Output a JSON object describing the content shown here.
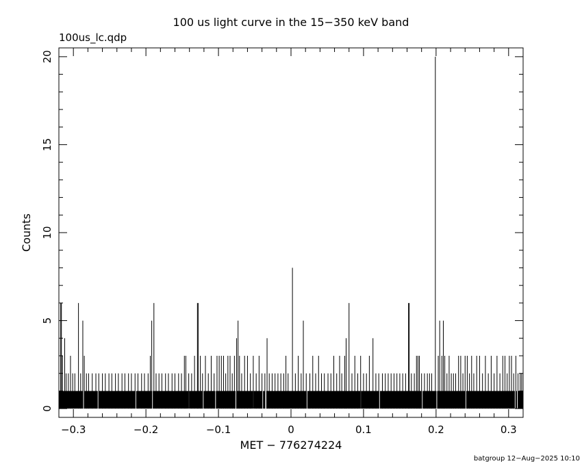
{
  "chart_data": {
    "type": "bar",
    "title": "100 us light curve in the 15−350 keV band",
    "subtitle": "100us_lc.qdp",
    "xlabel": "MET − 776274224",
    "ylabel": "Counts",
    "footer": "batgroup 12−Aug−2025 10:10",
    "xlim": [
      -0.32,
      0.32
    ],
    "ylim": [
      -0.5,
      20.5
    ],
    "grid": false,
    "legend": "none",
    "x_ticks": [
      {
        "value": -0.3,
        "label": "−0.3"
      },
      {
        "value": -0.2,
        "label": "−0.2"
      },
      {
        "value": -0.1,
        "label": "−0.1"
      },
      {
        "value": 0,
        "label": "0"
      },
      {
        "value": 0.1,
        "label": "0.1"
      },
      {
        "value": 0.2,
        "label": "0.2"
      },
      {
        "value": 0.3,
        "label": "0.3"
      }
    ],
    "y_ticks": [
      {
        "value": 0,
        "label": "0"
      },
      {
        "value": 5,
        "label": "5"
      },
      {
        "value": 10,
        "label": "10"
      },
      {
        "value": 15,
        "label": "15"
      },
      {
        "value": 20,
        "label": "20"
      }
    ],
    "bin_width": 0.0001,
    "baseline_counts": 1,
    "spikes": [
      {
        "x": -0.3175,
        "y": 6
      },
      {
        "x": -0.3165,
        "y": 6
      },
      {
        "x": -0.315,
        "y": 3
      },
      {
        "x": -0.312,
        "y": 4
      },
      {
        "x": -0.31,
        "y": 2
      },
      {
        "x": -0.307,
        "y": 2
      },
      {
        "x": -0.304,
        "y": 3
      },
      {
        "x": -0.301,
        "y": 2
      },
      {
        "x": -0.298,
        "y": 2
      },
      {
        "x": -0.293,
        "y": 6
      },
      {
        "x": -0.29,
        "y": 2
      },
      {
        "x": -0.287,
        "y": 5
      },
      {
        "x": -0.285,
        "y": 3
      },
      {
        "x": -0.282,
        "y": 2
      },
      {
        "x": -0.279,
        "y": 2
      },
      {
        "x": -0.274,
        "y": 2
      },
      {
        "x": -0.269,
        "y": 2
      },
      {
        "x": -0.265,
        "y": 2
      },
      {
        "x": -0.26,
        "y": 2
      },
      {
        "x": -0.256,
        "y": 2
      },
      {
        "x": -0.251,
        "y": 2
      },
      {
        "x": -0.247,
        "y": 2
      },
      {
        "x": -0.242,
        "y": 2
      },
      {
        "x": -0.238,
        "y": 2
      },
      {
        "x": -0.233,
        "y": 2
      },
      {
        "x": -0.229,
        "y": 2
      },
      {
        "x": -0.224,
        "y": 2
      },
      {
        "x": -0.22,
        "y": 2
      },
      {
        "x": -0.215,
        "y": 2
      },
      {
        "x": -0.211,
        "y": 2
      },
      {
        "x": -0.206,
        "y": 2
      },
      {
        "x": -0.202,
        "y": 2
      },
      {
        "x": -0.197,
        "y": 2
      },
      {
        "x": -0.194,
        "y": 3
      },
      {
        "x": -0.192,
        "y": 5
      },
      {
        "x": -0.189,
        "y": 6
      },
      {
        "x": -0.186,
        "y": 2
      },
      {
        "x": -0.182,
        "y": 2
      },
      {
        "x": -0.178,
        "y": 2
      },
      {
        "x": -0.173,
        "y": 2
      },
      {
        "x": -0.169,
        "y": 2
      },
      {
        "x": -0.164,
        "y": 2
      },
      {
        "x": -0.16,
        "y": 2
      },
      {
        "x": -0.155,
        "y": 2
      },
      {
        "x": -0.151,
        "y": 2
      },
      {
        "x": -0.147,
        "y": 3
      },
      {
        "x": -0.145,
        "y": 3
      },
      {
        "x": -0.141,
        "y": 2
      },
      {
        "x": -0.137,
        "y": 2
      },
      {
        "x": -0.133,
        "y": 3
      },
      {
        "x": -0.129,
        "y": 6
      },
      {
        "x": -0.128,
        "y": 6
      },
      {
        "x": -0.125,
        "y": 3
      },
      {
        "x": -0.122,
        "y": 2
      },
      {
        "x": -0.118,
        "y": 3
      },
      {
        "x": -0.114,
        "y": 2
      },
      {
        "x": -0.11,
        "y": 3
      },
      {
        "x": -0.106,
        "y": 2
      },
      {
        "x": -0.102,
        "y": 3
      },
      {
        "x": -0.099,
        "y": 3
      },
      {
        "x": -0.096,
        "y": 3
      },
      {
        "x": -0.093,
        "y": 3
      },
      {
        "x": -0.09,
        "y": 2
      },
      {
        "x": -0.087,
        "y": 3
      },
      {
        "x": -0.084,
        "y": 3
      },
      {
        "x": -0.081,
        "y": 2
      },
      {
        "x": -0.078,
        "y": 3
      },
      {
        "x": -0.075,
        "y": 4
      },
      {
        "x": -0.073,
        "y": 5
      },
      {
        "x": -0.071,
        "y": 3
      },
      {
        "x": -0.068,
        "y": 2
      },
      {
        "x": -0.064,
        "y": 3
      },
      {
        "x": -0.06,
        "y": 3
      },
      {
        "x": -0.056,
        "y": 2
      },
      {
        "x": -0.052,
        "y": 3
      },
      {
        "x": -0.048,
        "y": 2
      },
      {
        "x": -0.044,
        "y": 3
      },
      {
        "x": -0.04,
        "y": 2
      },
      {
        "x": -0.036,
        "y": 2
      },
      {
        "x": -0.033,
        "y": 4
      },
      {
        "x": -0.03,
        "y": 2
      },
      {
        "x": -0.026,
        "y": 2
      },
      {
        "x": -0.022,
        "y": 2
      },
      {
        "x": -0.018,
        "y": 2
      },
      {
        "x": -0.014,
        "y": 2
      },
      {
        "x": -0.01,
        "y": 2
      },
      {
        "x": -0.007,
        "y": 3
      },
      {
        "x": -0.004,
        "y": 2
      },
      {
        "x": 0.002,
        "y": 8
      },
      {
        "x": 0.006,
        "y": 2
      },
      {
        "x": 0.01,
        "y": 3
      },
      {
        "x": 0.014,
        "y": 2
      },
      {
        "x": 0.017,
        "y": 5
      },
      {
        "x": 0.021,
        "y": 2
      },
      {
        "x": 0.026,
        "y": 2
      },
      {
        "x": 0.03,
        "y": 3
      },
      {
        "x": 0.034,
        "y": 2
      },
      {
        "x": 0.038,
        "y": 3
      },
      {
        "x": 0.042,
        "y": 2
      },
      {
        "x": 0.046,
        "y": 2
      },
      {
        "x": 0.051,
        "y": 2
      },
      {
        "x": 0.055,
        "y": 2
      },
      {
        "x": 0.059,
        "y": 3
      },
      {
        "x": 0.063,
        "y": 2
      },
      {
        "x": 0.067,
        "y": 3
      },
      {
        "x": 0.07,
        "y": 2
      },
      {
        "x": 0.074,
        "y": 3
      },
      {
        "x": 0.076,
        "y": 4
      },
      {
        "x": 0.08,
        "y": 6
      },
      {
        "x": 0.084,
        "y": 2
      },
      {
        "x": 0.088,
        "y": 3
      },
      {
        "x": 0.092,
        "y": 2
      },
      {
        "x": 0.096,
        "y": 3
      },
      {
        "x": 0.1,
        "y": 2
      },
      {
        "x": 0.104,
        "y": 2
      },
      {
        "x": 0.108,
        "y": 3
      },
      {
        "x": 0.113,
        "y": 4
      },
      {
        "x": 0.117,
        "y": 2
      },
      {
        "x": 0.121,
        "y": 2
      },
      {
        "x": 0.126,
        "y": 2
      },
      {
        "x": 0.13,
        "y": 2
      },
      {
        "x": 0.134,
        "y": 2
      },
      {
        "x": 0.138,
        "y": 2
      },
      {
        "x": 0.142,
        "y": 2
      },
      {
        "x": 0.146,
        "y": 2
      },
      {
        "x": 0.15,
        "y": 2
      },
      {
        "x": 0.154,
        "y": 2
      },
      {
        "x": 0.158,
        "y": 2
      },
      {
        "x": 0.162,
        "y": 6
      },
      {
        "x": 0.163,
        "y": 6
      },
      {
        "x": 0.166,
        "y": 2
      },
      {
        "x": 0.17,
        "y": 2
      },
      {
        "x": 0.173,
        "y": 3
      },
      {
        "x": 0.175,
        "y": 3
      },
      {
        "x": 0.177,
        "y": 3
      },
      {
        "x": 0.18,
        "y": 2
      },
      {
        "x": 0.184,
        "y": 2
      },
      {
        "x": 0.188,
        "y": 2
      },
      {
        "x": 0.191,
        "y": 2
      },
      {
        "x": 0.194,
        "y": 2
      },
      {
        "x": 0.199,
        "y": 20
      },
      {
        "x": 0.203,
        "y": 3
      },
      {
        "x": 0.205,
        "y": 5
      },
      {
        "x": 0.208,
        "y": 3
      },
      {
        "x": 0.21,
        "y": 5
      },
      {
        "x": 0.212,
        "y": 3
      },
      {
        "x": 0.215,
        "y": 2
      },
      {
        "x": 0.218,
        "y": 3
      },
      {
        "x": 0.221,
        "y": 2
      },
      {
        "x": 0.224,
        "y": 2
      },
      {
        "x": 0.227,
        "y": 2
      },
      {
        "x": 0.231,
        "y": 3
      },
      {
        "x": 0.234,
        "y": 3
      },
      {
        "x": 0.237,
        "y": 2
      },
      {
        "x": 0.24,
        "y": 3
      },
      {
        "x": 0.243,
        "y": 3
      },
      {
        "x": 0.246,
        "y": 2
      },
      {
        "x": 0.249,
        "y": 3
      },
      {
        "x": 0.252,
        "y": 2
      },
      {
        "x": 0.256,
        "y": 3
      },
      {
        "x": 0.26,
        "y": 3
      },
      {
        "x": 0.264,
        "y": 2
      },
      {
        "x": 0.268,
        "y": 3
      },
      {
        "x": 0.272,
        "y": 2
      },
      {
        "x": 0.276,
        "y": 3
      },
      {
        "x": 0.28,
        "y": 2
      },
      {
        "x": 0.284,
        "y": 3
      },
      {
        "x": 0.288,
        "y": 2
      },
      {
        "x": 0.292,
        "y": 3
      },
      {
        "x": 0.295,
        "y": 3
      },
      {
        "x": 0.298,
        "y": 2
      },
      {
        "x": 0.301,
        "y": 3
      },
      {
        "x": 0.304,
        "y": 3
      },
      {
        "x": 0.307,
        "y": 2
      },
      {
        "x": 0.31,
        "y": 3
      },
      {
        "x": 0.313,
        "y": 2
      },
      {
        "x": 0.316,
        "y": 2
      },
      {
        "x": 0.318,
        "y": 2
      }
    ],
    "zero_bins": [
      -0.286,
      -0.266,
      -0.214,
      -0.191,
      -0.141,
      -0.121,
      -0.104,
      -0.076,
      -0.052,
      -0.039,
      -0.0355,
      -0.0345,
      0.022,
      0.096,
      0.122,
      0.181,
      0.201,
      0.241,
      0.309,
      0.312
    ]
  }
}
